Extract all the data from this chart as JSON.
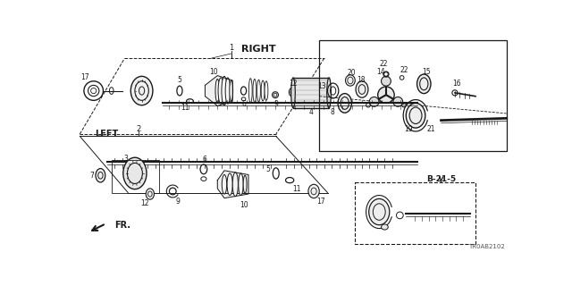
{
  "bg_color": "#ffffff",
  "line_color": "#1a1a1a",
  "part_number_label": "TR0AB2102",
  "ref_label": "B-21-5",
  "right_label": "RIGHT",
  "left_label": "LEFT",
  "fr_label": "FR.",
  "fig_width": 6.4,
  "fig_height": 3.2,
  "dpi": 100
}
